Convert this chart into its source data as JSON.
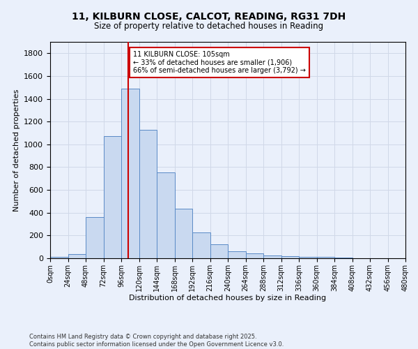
{
  "title": "11, KILBURN CLOSE, CALCOT, READING, RG31 7DH",
  "subtitle": "Size of property relative to detached houses in Reading",
  "xlabel": "Distribution of detached houses by size in Reading",
  "ylabel": "Number of detached properties",
  "bin_edges": [
    0,
    24,
    48,
    72,
    96,
    120,
    144,
    168,
    192,
    216,
    240,
    264,
    288,
    312,
    336,
    360,
    384,
    408,
    432,
    456,
    480
  ],
  "bar_heights": [
    10,
    35,
    360,
    1070,
    1490,
    1130,
    755,
    435,
    225,
    120,
    60,
    45,
    25,
    20,
    15,
    10,
    5,
    3,
    2,
    2
  ],
  "bar_color": "#c9d9f0",
  "bar_edgecolor": "#5a8ac6",
  "ylim": [
    0,
    1900
  ],
  "yticks": [
    0,
    200,
    400,
    600,
    800,
    1000,
    1200,
    1400,
    1600,
    1800
  ],
  "xtick_labels": [
    "0sqm",
    "24sqm",
    "48sqm",
    "72sqm",
    "96sqm",
    "120sqm",
    "144sqm",
    "168sqm",
    "192sqm",
    "216sqm",
    "240sqm",
    "264sqm",
    "288sqm",
    "312sqm",
    "336sqm",
    "360sqm",
    "384sqm",
    "408sqm",
    "432sqm",
    "456sqm",
    "480sqm"
  ],
  "property_size": 105,
  "vline_color": "#cc0000",
  "annotation_text": "11 KILBURN CLOSE: 105sqm\n← 33% of detached houses are smaller (1,906)\n66% of semi-detached houses are larger (3,792) →",
  "annotation_box_edgecolor": "#cc0000",
  "annotation_box_facecolor": "#ffffff",
  "grid_color": "#d0d8e8",
  "background_color": "#eaf0fb",
  "footer_line1": "Contains HM Land Registry data © Crown copyright and database right 2025.",
  "footer_line2": "Contains public sector information licensed under the Open Government Licence v3.0."
}
